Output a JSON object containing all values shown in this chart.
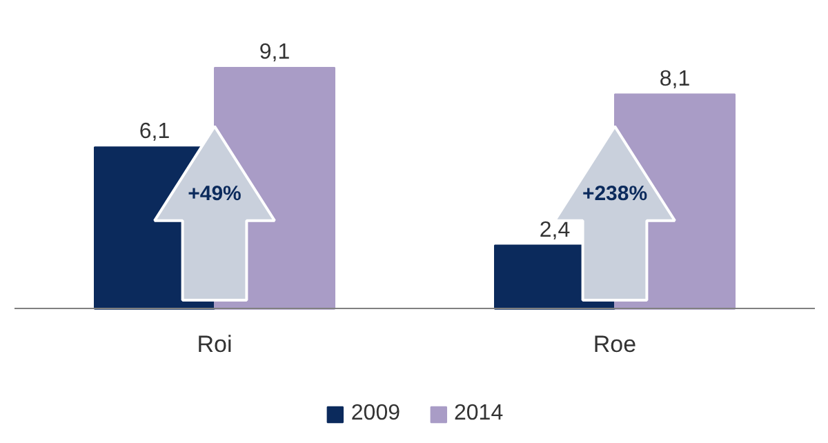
{
  "chart_data": {
    "type": "bar",
    "categories": [
      "Roi",
      "Roe"
    ],
    "series": [
      {
        "name": "2009",
        "color": "#0b2a5c",
        "values": [
          6.1,
          2.4
        ],
        "value_labels": [
          "6,1",
          "2,4"
        ]
      },
      {
        "name": "2014",
        "color": "#a99cc6",
        "values": [
          9.1,
          8.1
        ],
        "value_labels": [
          "9,1",
          "8,1"
        ]
      }
    ],
    "legend": "bottom",
    "annotations": [
      "+49%",
      "+238%"
    ]
  }
}
